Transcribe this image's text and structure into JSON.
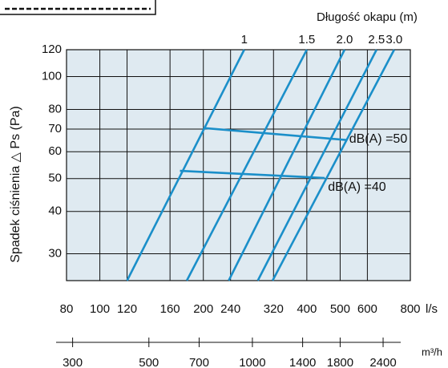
{
  "chart_data": {
    "type": "line",
    "title": "Długość okapu (m)",
    "y_label": "Spadek ciśnienia △ Ps (Pa)",
    "x_label": "l/s",
    "x2_label": "m³/h",
    "log_x": true,
    "log_y": true,
    "grid": true,
    "xlim": [
      80,
      800
    ],
    "xticks": [
      80,
      100,
      120,
      160,
      200,
      240,
      320,
      400,
      500,
      600,
      800
    ],
    "ylim": [
      25,
      120
    ],
    "yticks": [
      30,
      40,
      50,
      60,
      70,
      80,
      100,
      120
    ],
    "x2lim": [
      288,
      2880
    ],
    "x2ticks": [
      300,
      500,
      700,
      1000,
      1400,
      1800,
      2400
    ],
    "background": "#dfeaf1",
    "series": [
      {
        "name": "1",
        "color": "#1b8fc9",
        "x": [
          120,
          263
        ],
        "values": [
          25,
          120
        ]
      },
      {
        "name": "1.5",
        "color": "#1b8fc9",
        "x": [
          179,
          400
        ],
        "values": [
          25,
          120
        ]
      },
      {
        "name": "2.0",
        "color": "#1b8fc9",
        "x": [
          237,
          515
        ],
        "values": [
          25,
          120
        ]
      },
      {
        "name": "2.5",
        "color": "#1b8fc9",
        "x": [
          288,
          638
        ],
        "values": [
          25,
          120
        ]
      },
      {
        "name": "3.0",
        "color": "#1b8fc9",
        "x": [
          318,
          718
        ],
        "values": [
          25,
          120
        ]
      },
      {
        "name": "dB(A) =50",
        "color": "#1b8fc9",
        "x": [
          200,
          520
        ],
        "values": [
          70.5,
          65
        ]
      },
      {
        "name": "dB(A) =40",
        "color": "#1b8fc9",
        "x": [
          171,
          451
        ],
        "values": [
          52.7,
          50.2
        ]
      }
    ]
  }
}
